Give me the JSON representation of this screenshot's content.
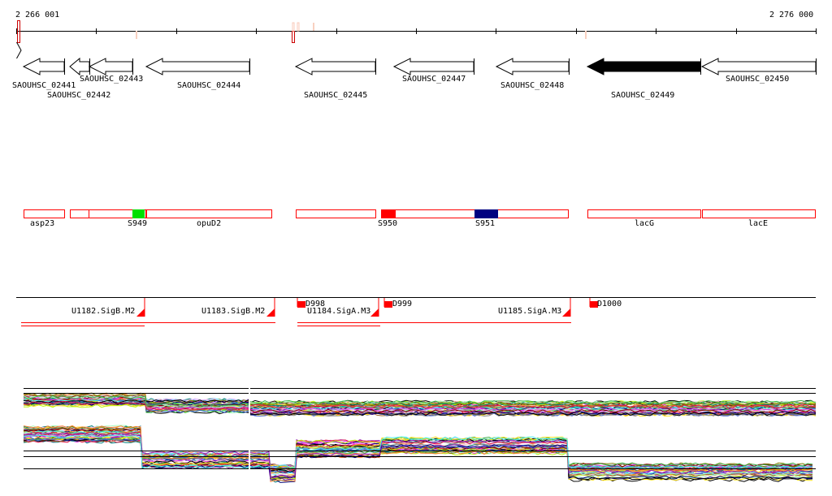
{
  "ruler": {
    "start_label": "2 266 001",
    "end_label": "2 276 000"
  },
  "genes": [
    {
      "name": "SAOUHSC_02441",
      "strand": "-",
      "highlight": false
    },
    {
      "name": "SAOUHSC_02442",
      "strand": "-",
      "highlight": false
    },
    {
      "name": "SAOUHSC_02443",
      "strand": "-",
      "highlight": false
    },
    {
      "name": "SAOUHSC_02444",
      "strand": "-",
      "highlight": false
    },
    {
      "name": "SAOUHSC_02445",
      "strand": "-",
      "highlight": false
    },
    {
      "name": "SAOUHSC_02447",
      "strand": "-",
      "highlight": false
    },
    {
      "name": "SAOUHSC_02448",
      "strand": "-",
      "highlight": false
    },
    {
      "name": "SAOUHSC_02449",
      "strand": "-",
      "highlight": true
    },
    {
      "name": "SAOUHSC_02450",
      "strand": "-",
      "highlight": false
    }
  ],
  "features": [
    "asp23",
    "S949",
    "opuD2",
    "S950",
    "S951",
    "lacG",
    "lacE"
  ],
  "feature_colors": {
    "S949": "#00e000",
    "S950": "#ff0000",
    "S951": "#000080"
  },
  "promoters": [
    "U1182.SigB.M2",
    "U1183.SigB.M2",
    "U1184.SigA.M3",
    "U1185.SigA.M3"
  ],
  "downstream": [
    "D998",
    "D999",
    "D1000"
  ]
}
